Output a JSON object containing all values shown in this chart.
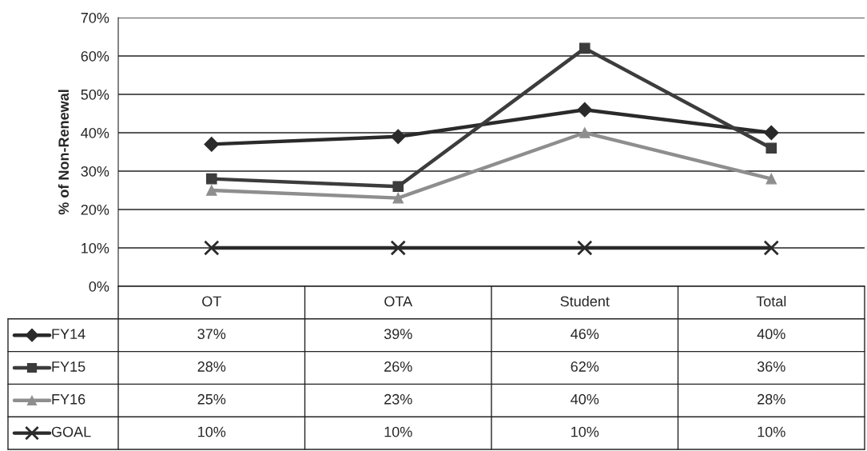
{
  "chart_data": {
    "type": "line",
    "ylabel": "% of Non-Renewal",
    "categories": [
      "OT",
      "OTA",
      "Student",
      "Total"
    ],
    "series": [
      {
        "name": "FY14",
        "color": "#2a2a2a",
        "marker": "diamond",
        "values": [
          37,
          39,
          46,
          40
        ],
        "value_labels": [
          "37%",
          "39%",
          "46%",
          "40%"
        ]
      },
      {
        "name": "FY15",
        "color": "#3c3c3c",
        "marker": "square",
        "values": [
          28,
          26,
          62,
          36
        ],
        "value_labels": [
          "28%",
          "26%",
          "62%",
          "36%"
        ]
      },
      {
        "name": "FY16",
        "color": "#8e8e8e",
        "marker": "triangle",
        "values": [
          25,
          23,
          40,
          28
        ],
        "value_labels": [
          "25%",
          "23%",
          "40%",
          "28%"
        ]
      },
      {
        "name": "GOAL",
        "color": "#2a2a2a",
        "marker": "cross",
        "values": [
          10,
          10,
          10,
          10
        ],
        "value_labels": [
          "10%",
          "10%",
          "10%",
          "10%"
        ]
      }
    ],
    "ylim": [
      0,
      70
    ],
    "yticks": [
      {
        "value": 0,
        "label": "0%"
      },
      {
        "value": 10,
        "label": "10%"
      },
      {
        "value": 20,
        "label": "20%"
      },
      {
        "value": 30,
        "label": "30%"
      },
      {
        "value": 40,
        "label": "40%"
      },
      {
        "value": 50,
        "label": "50%"
      },
      {
        "value": 60,
        "label": "60%"
      },
      {
        "value": 70,
        "label": "70%"
      }
    ],
    "grid": "y",
    "legend": "bottom left",
    "line_style": "solid"
  }
}
